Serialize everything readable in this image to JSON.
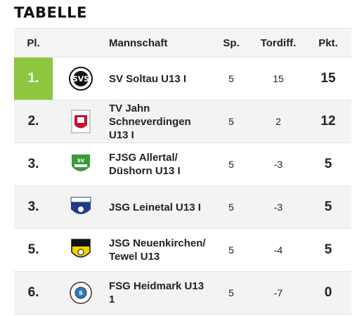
{
  "title": "TABELLE",
  "columns": {
    "pl": "Pl.",
    "team": "Mannschaft",
    "sp": "Sp.",
    "tordiff": "Tordiff.",
    "pkt": "Pkt."
  },
  "rows": [
    {
      "pl": "1.",
      "team": "SV Soltau U13 I",
      "sp": "5",
      "tordiff": "15",
      "pkt": "15",
      "logo": "sv-soltau-logo"
    },
    {
      "pl": "2.",
      "team": "TV Jahn Schneverdingen U13 I",
      "sp": "5",
      "tordiff": "2",
      "pkt": "12",
      "logo": "tv-jahn-logo"
    },
    {
      "pl": "3.",
      "team": "FJSG Allertal/ Düshorn U13 I",
      "sp": "5",
      "tordiff": "-3",
      "pkt": "5",
      "logo": "fjsg-allertal-logo"
    },
    {
      "pl": "3.",
      "team": "JSG Leinetal U13 I",
      "sp": "5",
      "tordiff": "-3",
      "pkt": "5",
      "logo": "jsg-leinetal-logo"
    },
    {
      "pl": "5.",
      "team": "JSG Neuenkirchen/ Tewel U13",
      "sp": "5",
      "tordiff": "-4",
      "pkt": "5",
      "logo": "jsg-neuenkirchen-logo"
    },
    {
      "pl": "6.",
      "team": "FSG Heidmark U13 1",
      "sp": "5",
      "tordiff": "-7",
      "pkt": "0",
      "logo": "fsg-heidmark-logo"
    }
  ],
  "colors": {
    "leader": "#8dc63f",
    "alt_row": "#f3f3f3",
    "header_bg": "#f4f4f4"
  }
}
